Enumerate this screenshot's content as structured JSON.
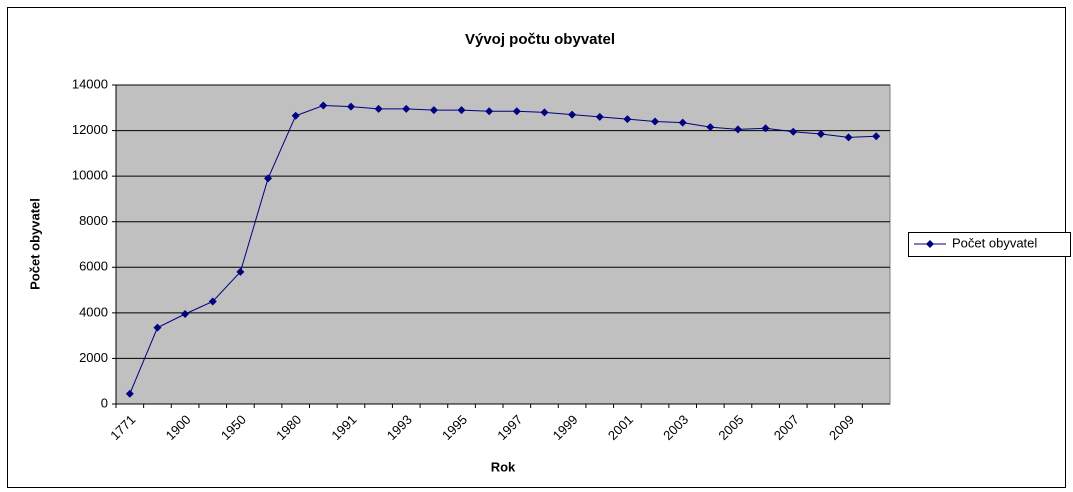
{
  "chart_data": {
    "type": "line",
    "title": "Vývoj počtu obyvatel",
    "x_label": "Rok",
    "y_label": "Počet obyvatel",
    "categories": [
      "1771",
      null,
      "1900",
      null,
      "1950",
      null,
      "1980",
      null,
      "1991",
      null,
      "1993",
      null,
      "1995",
      null,
      "1997",
      null,
      "1999",
      null,
      "2001",
      null,
      "2003",
      null,
      "2005",
      null,
      "2007",
      null,
      "2009",
      null
    ],
    "series": [
      {
        "name": "Počet obyvatel",
        "color": "#000080",
        "values": [
          450,
          3350,
          3950,
          4500,
          5800,
          9900,
          12650,
          13100,
          13050,
          12950,
          12950,
          12900,
          12900,
          12850,
          12850,
          12800,
          12700,
          12600,
          12500,
          12400,
          12350,
          12150,
          12050,
          12100,
          11950,
          11850,
          11700,
          11750
        ]
      }
    ],
    "ylim": [
      0,
      14000
    ],
    "yticks": [
      0,
      2000,
      4000,
      6000,
      8000,
      10000,
      12000,
      14000
    ],
    "grid": true,
    "plot_background": "#c0c0c0",
    "legend": "right"
  }
}
